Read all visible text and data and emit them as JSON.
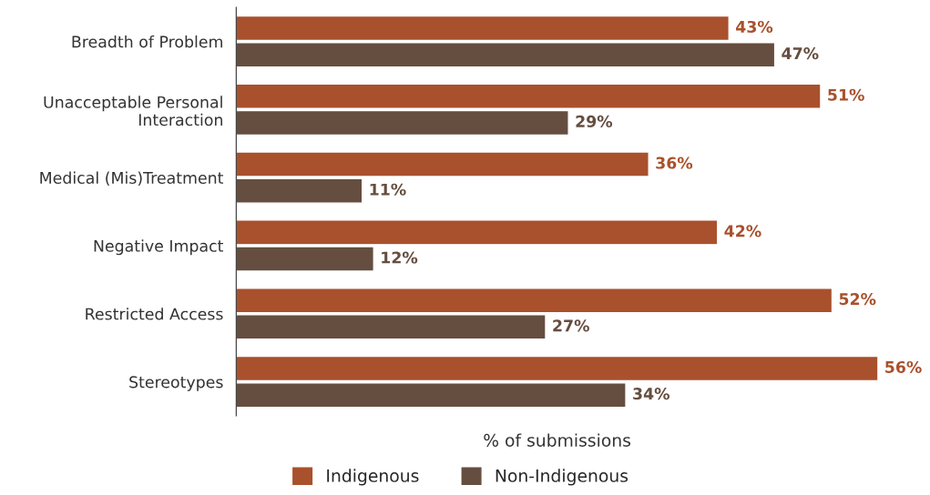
{
  "chart_data": {
    "type": "bar",
    "orientation": "horizontal",
    "categories": [
      "Breadth of Problem",
      "Unacceptable Personal\nInteraction",
      "Medical (Mis)Treatment",
      "Negative Impact",
      "Restricted Access",
      "Stereotypes"
    ],
    "series": [
      {
        "name": "Indigenous",
        "color": "#a9512c",
        "values": [
          43,
          51,
          36,
          42,
          52,
          56
        ],
        "value_labels": [
          "43%",
          "51%",
          "36%",
          "42%",
          "52%",
          "56%"
        ]
      },
      {
        "name": "Non-Indigenous",
        "color": "#654e40",
        "values": [
          47,
          29,
          11,
          12,
          27,
          34
        ],
        "value_labels": [
          "47%",
          "29%",
          "11%",
          "12%",
          "27%",
          "34%"
        ]
      }
    ],
    "xlabel": "% of submissions",
    "tick_labels": "y",
    "legend": "bottom",
    "grid": false
  }
}
